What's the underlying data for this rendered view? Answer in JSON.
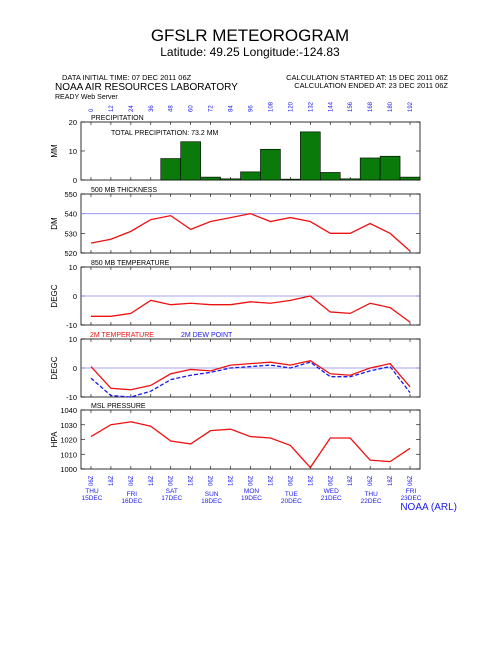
{
  "header": {
    "title": "GFSLR METEOROGRAM",
    "subtitle": "Latitude: 49.25 Longitude:-124.83",
    "init_time": "DATA INITIAL TIME: 07 DEC 2011 06Z",
    "calc_started": "CALCULATION STARTED AT: 15 DEC 2011 06Z",
    "calc_ended": "CALCULATION ENDED AT: 23 DEC 2011 06Z",
    "organization": "NOAA AIR RESOURCES LABORATORY",
    "server": "READY Web Server",
    "footer": "NOAA (ARL)"
  },
  "colors": {
    "precip_bar": "#0a7a0a",
    "line_red": "#ee1111",
    "dew_blue": "#1a1aee",
    "ref_line": "#8888ee"
  },
  "chart_data": [
    {
      "type": "bar",
      "title": "PRECIPITATION",
      "annotation": "TOTAL PRECIPITATION: 73.2 MM",
      "ylabel": "MM",
      "ylim": [
        0,
        20
      ],
      "yticks": [
        0,
        10,
        20
      ],
      "forecast_hours": [
        "0",
        "12",
        "24",
        "36",
        "48",
        "60",
        "72",
        "84",
        "96",
        "108",
        "120",
        "132",
        "144",
        "156",
        "168",
        "180",
        "192"
      ],
      "values": [
        0,
        0,
        0,
        0,
        7.4,
        13.2,
        1.0,
        0.4,
        2.8,
        10.6,
        0.3,
        16.6,
        2.6,
        0.4,
        7.6,
        8.2,
        1.0
      ]
    },
    {
      "type": "line",
      "title": "500 MB THICKNESS",
      "ylabel": "DM",
      "ylim": [
        520,
        550
      ],
      "yticks": [
        520,
        530,
        540,
        550
      ],
      "reference": 540,
      "x": [
        0,
        12,
        24,
        36,
        48,
        60,
        72,
        84,
        96,
        108,
        120,
        132,
        144,
        156,
        168,
        180,
        192
      ],
      "values": [
        525,
        527,
        531,
        537,
        539,
        532,
        536,
        538,
        540,
        536,
        538,
        536,
        530,
        530,
        535,
        530,
        521
      ]
    },
    {
      "type": "line",
      "title": "850 MB TEMPERATURE",
      "ylabel": "DEGC",
      "ylim": [
        -10,
        10
      ],
      "yticks": [
        -10,
        0,
        10
      ],
      "reference": 0,
      "x": [
        0,
        12,
        24,
        36,
        48,
        60,
        72,
        84,
        96,
        108,
        120,
        132,
        144,
        156,
        168,
        180,
        192
      ],
      "values": [
        -7,
        -7,
        -6,
        -1.5,
        -3,
        -2.5,
        -3,
        -3,
        -2,
        -2.5,
        -1.5,
        0,
        -5.5,
        -6,
        -2.5,
        -4,
        -9
      ]
    },
    {
      "type": "line",
      "ylabel": "DEGC",
      "ylim": [
        -10,
        10
      ],
      "yticks": [
        -10,
        0,
        10
      ],
      "reference": 0,
      "x": [
        0,
        12,
        24,
        36,
        48,
        60,
        72,
        84,
        96,
        108,
        120,
        132,
        144,
        156,
        168,
        180,
        192
      ],
      "series": [
        {
          "name": "2M TEMPERATURE",
          "values": [
            0.5,
            -7,
            -7.5,
            -6,
            -2,
            -0.5,
            -1,
            1,
            1.5,
            2,
            1,
            2.5,
            -2,
            -2.5,
            0,
            1.5,
            -6.5
          ]
        },
        {
          "name": "2M DEW POINT",
          "values": [
            -3.5,
            -9.5,
            -10,
            -8,
            -4,
            -2.5,
            -1.5,
            0,
            0.5,
            1,
            0,
            2,
            -3,
            -3,
            -1,
            0.5,
            -8.5
          ]
        }
      ]
    },
    {
      "type": "line",
      "title": "MSL PRESSURE",
      "ylabel": "HPA",
      "ylim": [
        1000,
        1040
      ],
      "yticks": [
        1000,
        1010,
        1020,
        1030,
        1040
      ],
      "x": [
        0,
        12,
        24,
        36,
        48,
        60,
        72,
        84,
        96,
        108,
        120,
        132,
        144,
        156,
        168,
        180,
        192
      ],
      "values": [
        1022,
        1030,
        1032,
        1029,
        1019,
        1017,
        1026,
        1027,
        1022,
        1021,
        1016,
        1001,
        1021,
        1021,
        1006,
        1005,
        1014
      ]
    }
  ],
  "xaxis": {
    "hour_labels": [
      "06Z",
      "18Z",
      "06Z",
      "18Z",
      "06Z",
      "18Z",
      "06Z",
      "18Z",
      "06Z",
      "18Z",
      "06Z",
      "18Z",
      "06Z",
      "18Z",
      "06Z",
      "18Z",
      "06Z"
    ],
    "day_labels": [
      {
        "day": "THU",
        "date": "15DEC"
      },
      {
        "day": "FRI",
        "date": "16DEC"
      },
      {
        "day": "SAT",
        "date": "17DEC"
      },
      {
        "day": "SUN",
        "date": "18DEC"
      },
      {
        "day": "MON",
        "date": "19DEC"
      },
      {
        "day": "TUE",
        "date": "20DEC"
      },
      {
        "day": "WED",
        "date": "21DEC"
      },
      {
        "day": "THU",
        "date": "22DEC"
      },
      {
        "day": "FRI",
        "date": "23DEC"
      }
    ]
  }
}
